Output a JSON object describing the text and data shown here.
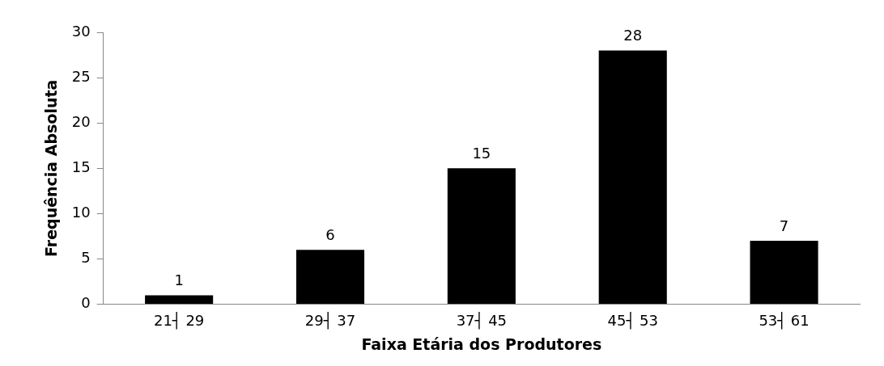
{
  "chart_data": {
    "type": "bar",
    "xlabel": "Faixa Etária dos Produtores",
    "ylabel": "Frequência Absoluta",
    "categories": [
      "21┤ 29",
      "29┤ 37",
      "37┤ 45",
      "45┤ 53",
      "53┤ 61"
    ],
    "values": [
      1,
      6,
      15,
      28,
      7
    ],
    "color": "#000000",
    "ylim": [
      0,
      30
    ],
    "yticks": [
      0,
      5,
      10,
      15,
      20,
      25,
      30
    ],
    "grid": false,
    "legend": false,
    "data_labels": true
  }
}
